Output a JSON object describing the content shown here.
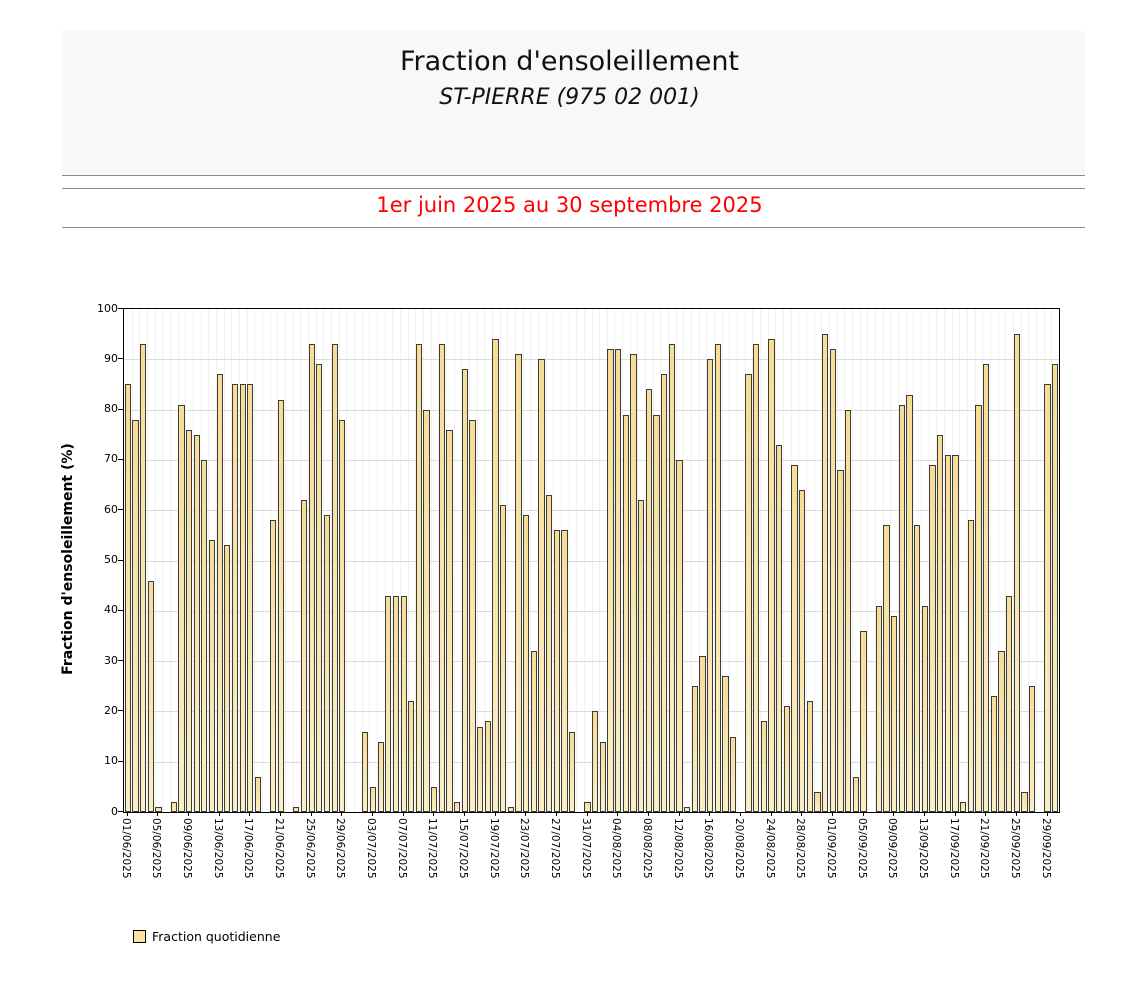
{
  "header": {
    "title": "Fraction d'ensoleillement",
    "subtitle": "ST-PIERRE (975 02 001)",
    "period": "1er juin 2025 au 30 septembre 2025",
    "period_color": "#fe0000"
  },
  "legend": {
    "label": "Fraction quotidienne",
    "swatch_color": "#f8e2a0"
  },
  "chart_data": {
    "type": "bar",
    "title": "Fraction d'ensoleillement",
    "subtitle": "ST-PIERRE (975 02 001)",
    "xlabel": "",
    "ylabel": "Fraction d'ensoleillement (%)",
    "ylim": [
      0,
      100
    ],
    "yticks": [
      0,
      10,
      20,
      30,
      40,
      50,
      60,
      70,
      80,
      90,
      100
    ],
    "grid": "on",
    "legend_position": "bottom-left",
    "bar_color": "#f8e2a0",
    "bar_border_color": "#3c3c3c",
    "start_date": "01/06/2025",
    "end_date": "30/09/2025",
    "tick_every_n_days": 4,
    "tick_labels": [
      "01/06/2025",
      "05/06/2025",
      "09/06/2025",
      "13/06/2025",
      "17/06/2025",
      "21/06/2025",
      "25/06/2025",
      "29/06/2025",
      "03/07/2025",
      "07/07/2025",
      "11/07/2025",
      "15/07/2025",
      "19/07/2025",
      "23/07/2025",
      "27/07/2025",
      "31/07/2025",
      "04/08/2025",
      "08/08/2025",
      "12/08/2025",
      "16/08/2025",
      "20/08/2025",
      "24/08/2025",
      "28/08/2025",
      "01/09/2025",
      "05/09/2025",
      "09/09/2025",
      "13/09/2025",
      "17/09/2025",
      "21/09/2025",
      "25/09/2025",
      "29/09/2025"
    ],
    "values": [
      85,
      78,
      93,
      46,
      1,
      0,
      2,
      81,
      76,
      75,
      70,
      54,
      87,
      53,
      85,
      85,
      85,
      7,
      0,
      58,
      82,
      0,
      1,
      62,
      93,
      89,
      59,
      93,
      78,
      0,
      0,
      16,
      5,
      14,
      43,
      43,
      43,
      22,
      93,
      80,
      5,
      93,
      76,
      2,
      88,
      78,
      17,
      18,
      94,
      61,
      1,
      91,
      59,
      32,
      90,
      63,
      56,
      56,
      16,
      0,
      2,
      20,
      14,
      92,
      92,
      79,
      91,
      62,
      84,
      79,
      87,
      93,
      70,
      1,
      25,
      31,
      90,
      93,
      27,
      15,
      0,
      87,
      93,
      18,
      94,
      73,
      21,
      69,
      64,
      22,
      4,
      95,
      92,
      68,
      80,
      7,
      36,
      0,
      41,
      57,
      39,
      81,
      83,
      57,
      41,
      69,
      75,
      71,
      71,
      2,
      58,
      81,
      89,
      23,
      32,
      43,
      95,
      4,
      25,
      0,
      85,
      89
    ]
  }
}
